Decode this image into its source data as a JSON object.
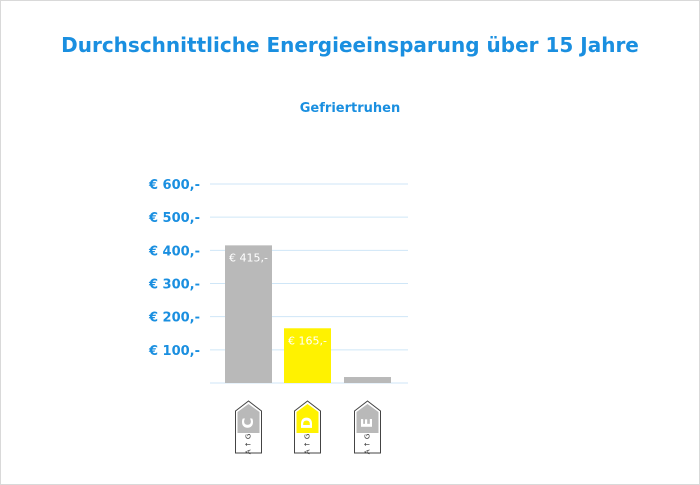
{
  "chart_data": {
    "type": "bar",
    "title": "Durchschnittliche Energieeinsparung über 15 Jahre",
    "subtitle": "Gefriertruhen",
    "categories": [
      "C",
      "D",
      "E"
    ],
    "values": [
      415,
      165,
      18
    ],
    "data_labels": [
      "€ 415,-",
      "€ 165,-",
      ""
    ],
    "bar_colors": [
      "#b9b9b9",
      "#fff200",
      "#b9b9b9"
    ],
    "ylim": [
      0,
      600
    ],
    "yticks": [
      100,
      200,
      300,
      400,
      500,
      600
    ],
    "ytick_labels": [
      "€ 100,-",
      "€ 200,-",
      "€ 300,-",
      "€ 400,-",
      "€ 500,-",
      "€ 600,-"
    ],
    "grid": true,
    "badges": [
      {
        "letter": "C",
        "scale": [
          "A",
          "G"
        ],
        "color": "#b9b9b9"
      },
      {
        "letter": "D",
        "scale": [
          "A",
          "G"
        ],
        "color": "#fff200"
      },
      {
        "letter": "E",
        "scale": [
          "A",
          "G"
        ],
        "color": "#b9b9b9"
      }
    ]
  },
  "colors": {
    "accent": "#1a8fe0",
    "grid": "#cfe6f7",
    "bar_gray": "#b9b9b9",
    "bar_yellow": "#fff200"
  }
}
